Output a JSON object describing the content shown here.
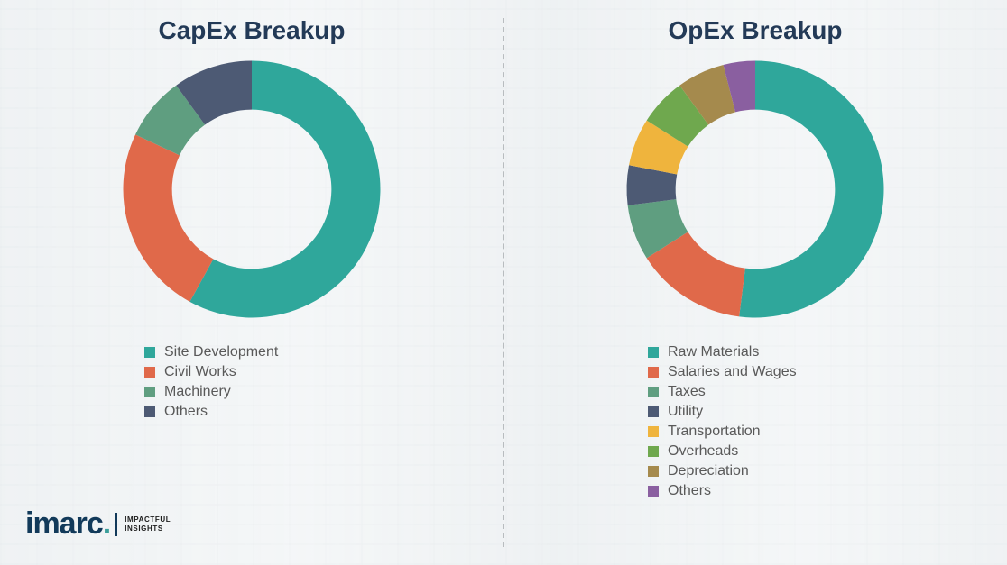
{
  "page": {
    "background_color": "#f5f7f8",
    "divider_color": "#b8bcbf"
  },
  "logo": {
    "word": "imarc",
    "tagline_line1": "IMPACTFUL",
    "tagline_line2": "INSIGHTS",
    "word_color": "#123a5a",
    "dot_color": "#3a9e9a"
  },
  "left_chart": {
    "type": "donut",
    "title": "CapEx Breakup",
    "title_color": "#233a57",
    "title_fontsize": 28,
    "inner_radius_pct": 62,
    "start_angle_deg": 0,
    "segments": [
      {
        "label": "Site Development",
        "value": 58,
        "color": "#2fa79b"
      },
      {
        "label": "Civil Works",
        "value": 24,
        "color": "#e0694a"
      },
      {
        "label": "Machinery",
        "value": 8,
        "color": "#5f9e80"
      },
      {
        "label": "Others",
        "value": 10,
        "color": "#4d5a74"
      }
    ],
    "legend_font_color": "#595959",
    "legend_fontsize": 16
  },
  "right_chart": {
    "type": "donut",
    "title": "OpEx Breakup",
    "title_color": "#233a57",
    "title_fontsize": 28,
    "inner_radius_pct": 62,
    "start_angle_deg": 0,
    "segments": [
      {
        "label": "Raw Materials",
        "value": 52,
        "color": "#2fa79b"
      },
      {
        "label": "Salaries and Wages",
        "value": 14,
        "color": "#e0694a"
      },
      {
        "label": "Taxes",
        "value": 7,
        "color": "#5f9e80"
      },
      {
        "label": "Utility",
        "value": 5,
        "color": "#4d5a74"
      },
      {
        "label": "Transportation",
        "value": 6,
        "color": "#efb43d"
      },
      {
        "label": "Overheads",
        "value": 6,
        "color": "#6fa84e"
      },
      {
        "label": "Depreciation",
        "value": 6,
        "color": "#a58a4d"
      },
      {
        "label": "Others",
        "value": 4,
        "color": "#8a5fa0"
      }
    ],
    "legend_font_color": "#595959",
    "legend_fontsize": 16
  }
}
